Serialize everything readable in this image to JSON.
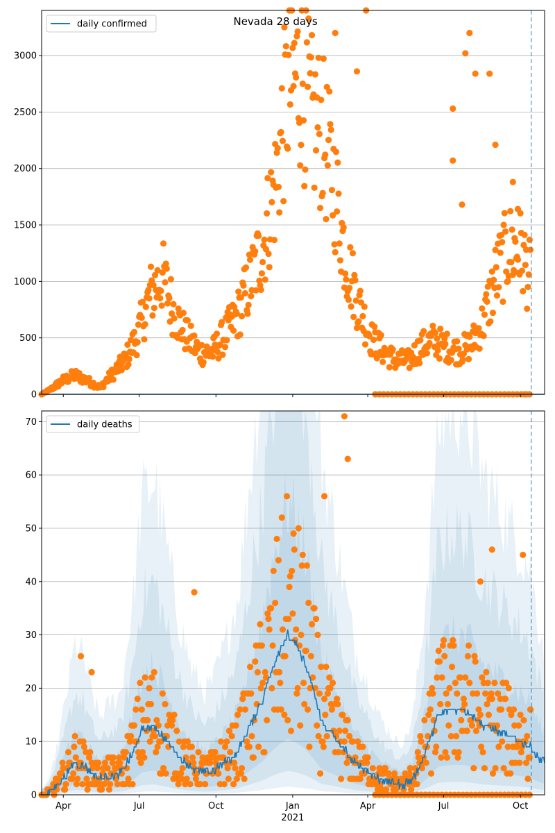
{
  "colors": {
    "line": "#1f77b4",
    "points": "#ff7f0e",
    "band_fill": "#1f77b4",
    "grid": "#b0b0b0",
    "vline": "#1f77b4"
  },
  "chart_data": [
    {
      "type": "scatter",
      "panel": "top",
      "title": "Nevada 28 days",
      "legend": [
        {
          "label": "daily confirmed",
          "series": "daily_confirmed"
        }
      ],
      "legend_position": "upper-left",
      "grid": "horizontal",
      "ylim": [
        0,
        3400
      ],
      "y_ticks": [
        0,
        500,
        1000,
        1500,
        2000,
        2500,
        3000
      ],
      "y_tick_labels": [
        "0",
        "500",
        "1000",
        "1500",
        "2000",
        "2500",
        "3000"
      ],
      "x_range_days": [
        0,
        603
      ],
      "x_tick_days": [
        26,
        117,
        209,
        301,
        391,
        482,
        574
      ],
      "x_tick_labels": [
        "",
        "",
        "",
        "",
        "",
        "",
        ""
      ],
      "forecast_line_day": 587,
      "line_values": [
        0,
        0
      ],
      "line_days": [
        0,
        603
      ],
      "scatter_anchor_days": [
        0,
        10,
        25,
        40,
        55,
        70,
        85,
        100,
        115,
        130,
        145,
        160,
        175,
        190,
        205,
        220,
        235,
        250,
        265,
        280,
        295,
        310,
        325,
        335,
        350,
        365,
        380,
        395,
        410,
        425,
        440,
        455,
        470,
        485,
        500,
        515,
        530,
        545,
        560,
        575,
        587
      ],
      "scatter_anchor_values": [
        0,
        40,
        120,
        170,
        120,
        60,
        180,
        300,
        520,
        880,
        1050,
        700,
        500,
        370,
        380,
        530,
        700,
        1000,
        1300,
        1850,
        2700,
        2850,
        2400,
        2350,
        1900,
        1200,
        800,
        500,
        380,
        300,
        300,
        420,
        480,
        420,
        380,
        440,
        650,
        1050,
        1300,
        1250,
        1000
      ],
      "outlier_points": [
        [
          389,
          3400
        ],
        [
          352,
          3200
        ],
        [
          378,
          2860
        ],
        [
          513,
          3200
        ],
        [
          508,
          3020
        ],
        [
          520,
          2840
        ],
        [
          537,
          2840
        ],
        [
          544,
          2210
        ],
        [
          493,
          2530
        ],
        [
          493,
          2070
        ],
        [
          504,
          1680
        ],
        [
          565,
          1880
        ],
        [
          571,
          1640
        ],
        [
          579,
          0
        ],
        [
          581,
          0
        ]
      ],
      "zero_points_days": [
        400,
        587
      ],
      "zero_points_step": 5
    },
    {
      "type": "line",
      "panel": "bottom",
      "title": "",
      "legend": [
        {
          "label": "daily deaths",
          "series": "daily_deaths"
        }
      ],
      "legend_position": "upper-left",
      "grid": "horizontal",
      "ylim": [
        0,
        72
      ],
      "y_ticks": [
        0,
        10,
        20,
        30,
        40,
        50,
        60,
        70
      ],
      "y_tick_labels": [
        "0",
        "10",
        "20",
        "30",
        "40",
        "50",
        "60",
        "70"
      ],
      "x_range_days": [
        0,
        603
      ],
      "x_tick_days": [
        26,
        117,
        209,
        301,
        391,
        482,
        574
      ],
      "x_tick_labels": [
        "Apr",
        "Jul",
        "Oct",
        "Jan",
        "Apr",
        "Jul",
        "Oct"
      ],
      "x_secondary_label": {
        "day": 301,
        "text": "2021"
      },
      "forecast_line_day": 587,
      "line_anchor_days": [
        0,
        10,
        20,
        30,
        40,
        50,
        60,
        70,
        80,
        95,
        110,
        120,
        135,
        150,
        165,
        180,
        195,
        205,
        220,
        235,
        250,
        265,
        275,
        285,
        295,
        305,
        315,
        325,
        335,
        345,
        355,
        365,
        375,
        385,
        395,
        405,
        415,
        425,
        435,
        445,
        455,
        465,
        475,
        490,
        505,
        515,
        530,
        545,
        560,
        575,
        587,
        595,
        603
      ],
      "line_anchor_values": [
        0,
        0.5,
        2,
        4,
        6,
        5.5,
        4,
        3,
        3.5,
        4,
        8,
        12,
        13,
        10,
        7,
        5,
        4,
        4.5,
        6,
        8,
        13,
        18,
        23,
        27,
        30,
        28,
        25,
        20,
        14,
        12,
        10,
        8,
        6,
        5,
        4,
        3,
        2.5,
        2,
        2,
        3,
        6,
        10,
        15,
        16,
        16,
        15,
        13,
        12,
        11,
        10,
        9,
        7,
        6
      ],
      "band_scales": [
        [
          0.35,
          1.8
        ],
        [
          0.15,
          3.0
        ],
        [
          0.05,
          4.5
        ]
      ],
      "scatter_mult_range": [
        0.3,
        1.9
      ],
      "outlier_points": [
        [
          363,
          71
        ],
        [
          367,
          63
        ],
        [
          339,
          56
        ],
        [
          540,
          46
        ],
        [
          577,
          45
        ],
        [
          526,
          40
        ],
        [
          47,
          26
        ],
        [
          60,
          23
        ],
        [
          183,
          38
        ]
      ],
      "zero_points_days": [
        400,
        587
      ],
      "zero_points_step": 5
    }
  ]
}
